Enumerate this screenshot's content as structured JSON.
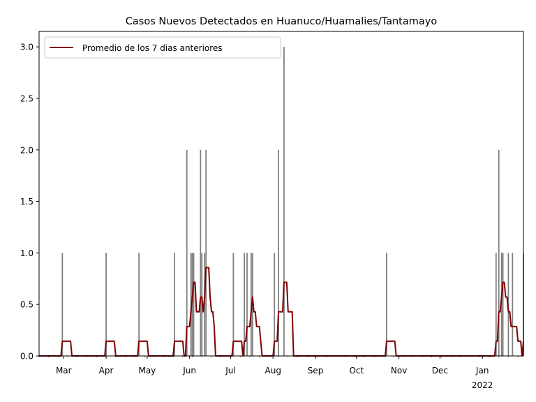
{
  "chart_data": {
    "type": "bar+line",
    "title": "Casos Nuevos Detectados en Huanuco/Huamalies/Tantamayo",
    "xlabel": "",
    "ylabel": "",
    "ylim": [
      0,
      3.15
    ],
    "xlim": [
      "2021-02-11",
      "2022-01-31"
    ],
    "grid": false,
    "legend_position": "top-left",
    "y_ticks": [
      "0.0",
      "0.5",
      "1.0",
      "1.5",
      "2.0",
      "2.5",
      "3.0"
    ],
    "x_ticks": [
      {
        "date": "2021-03-01",
        "label": "Mar"
      },
      {
        "date": "2021-04-01",
        "label": "Apr"
      },
      {
        "date": "2021-05-01",
        "label": "May"
      },
      {
        "date": "2021-06-01",
        "label": "Jun"
      },
      {
        "date": "2021-07-01",
        "label": "Jul"
      },
      {
        "date": "2021-08-01",
        "label": "Aug"
      },
      {
        "date": "2021-09-01",
        "label": "Sep"
      },
      {
        "date": "2021-10-01",
        "label": "Oct"
      },
      {
        "date": "2021-11-01",
        "label": "Nov"
      },
      {
        "date": "2021-12-01",
        "label": "Dec"
      },
      {
        "date": "2022-01-01",
        "label": "Jan"
      }
    ],
    "x_year_label": "2022",
    "bar_color": "#808080",
    "line_color": "#800000",
    "cases": [
      {
        "date": "2021-02-28",
        "value": 1
      },
      {
        "date": "2021-04-01",
        "value": 1
      },
      {
        "date": "2021-04-25",
        "value": 1
      },
      {
        "date": "2021-05-21",
        "value": 1
      },
      {
        "date": "2021-05-30",
        "value": 2
      },
      {
        "date": "2021-06-02",
        "value": 1
      },
      {
        "date": "2021-06-03",
        "value": 1
      },
      {
        "date": "2021-06-04",
        "value": 1
      },
      {
        "date": "2021-06-09",
        "value": 2
      },
      {
        "date": "2021-06-10",
        "value": 1
      },
      {
        "date": "2021-06-12",
        "value": 1
      },
      {
        "date": "2021-06-13",
        "value": 2
      },
      {
        "date": "2021-07-03",
        "value": 1
      },
      {
        "date": "2021-07-11",
        "value": 1
      },
      {
        "date": "2021-07-13",
        "value": 1
      },
      {
        "date": "2021-07-16",
        "value": 1
      },
      {
        "date": "2021-07-17",
        "value": 1
      },
      {
        "date": "2021-08-02",
        "value": 1
      },
      {
        "date": "2021-08-05",
        "value": 2
      },
      {
        "date": "2021-08-09",
        "value": 3
      },
      {
        "date": "2021-10-23",
        "value": 1
      },
      {
        "date": "2022-01-11",
        "value": 1
      },
      {
        "date": "2022-01-13",
        "value": 2
      },
      {
        "date": "2022-01-15",
        "value": 1
      },
      {
        "date": "2022-01-16",
        "value": 1
      },
      {
        "date": "2022-01-20",
        "value": 1
      },
      {
        "date": "2022-01-23",
        "value": 1
      },
      {
        "date": "2022-01-31",
        "value": 1
      }
    ],
    "series": [
      {
        "name": "Promedio de los 7 dias anteriores",
        "style": "line",
        "source": "cases",
        "window_days": 7
      }
    ]
  }
}
